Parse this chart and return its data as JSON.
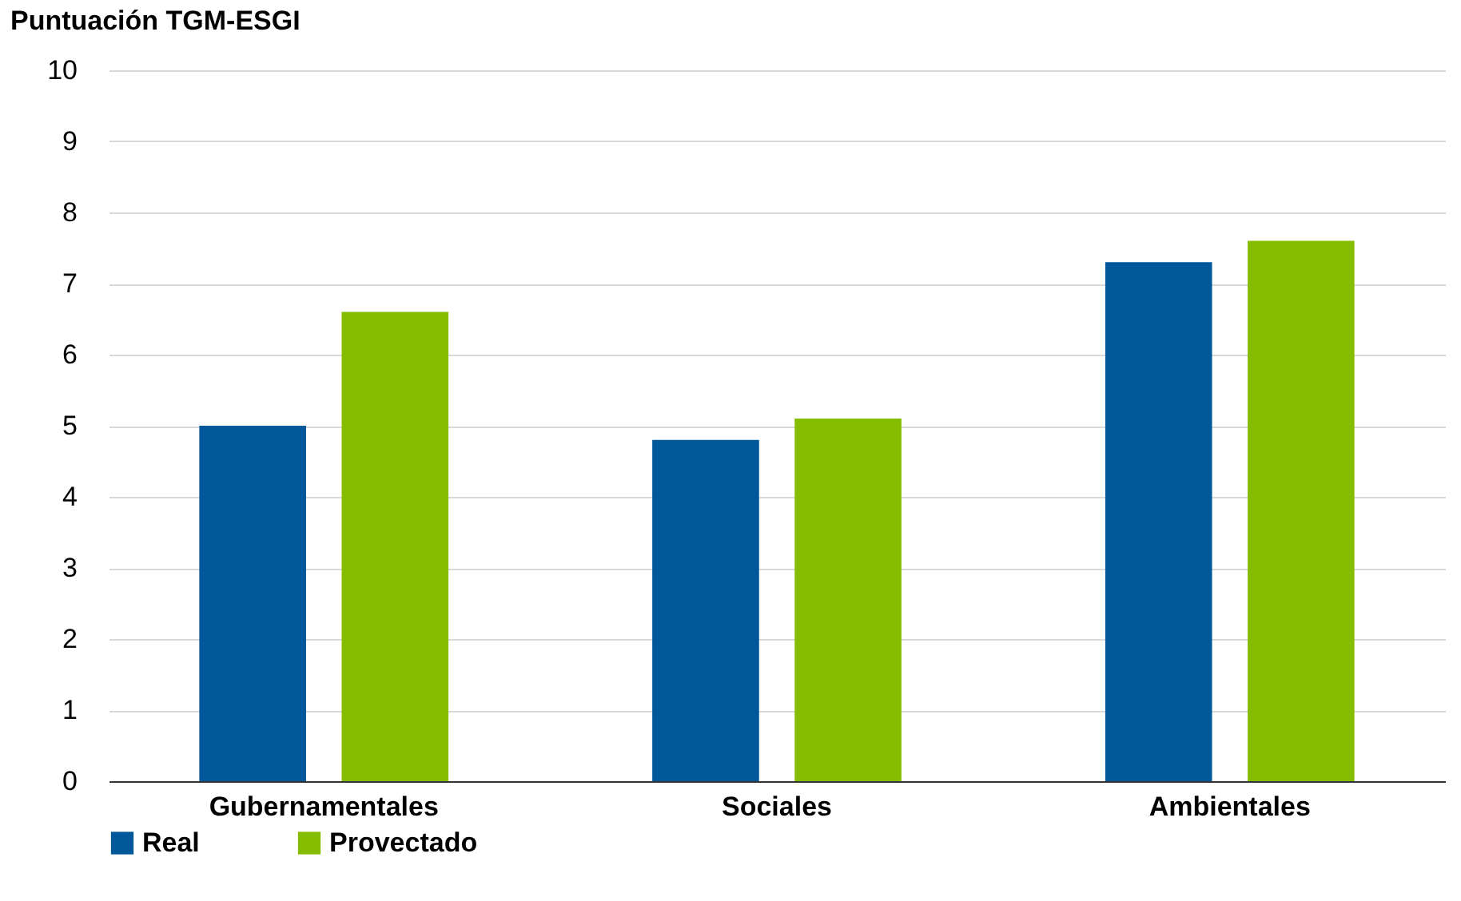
{
  "chart_data": {
    "type": "bar",
    "ylabel": "Puntuación TGM-ESGI",
    "categories": [
      "Gubernamentales",
      "Sociales",
      "Ambientales"
    ],
    "series": [
      {
        "name": "Real",
        "color": "#00579a",
        "values": [
          5.0,
          4.8,
          7.3
        ]
      },
      {
        "name": "Provectado",
        "color": "#84bd00",
        "values": [
          6.6,
          5.1,
          7.6
        ]
      }
    ],
    "ylim": [
      0,
      10
    ],
    "yticks": [
      0,
      1,
      2,
      3,
      4,
      5,
      6,
      7,
      8,
      9,
      10
    ],
    "grid": "y",
    "legend": "bottom"
  }
}
